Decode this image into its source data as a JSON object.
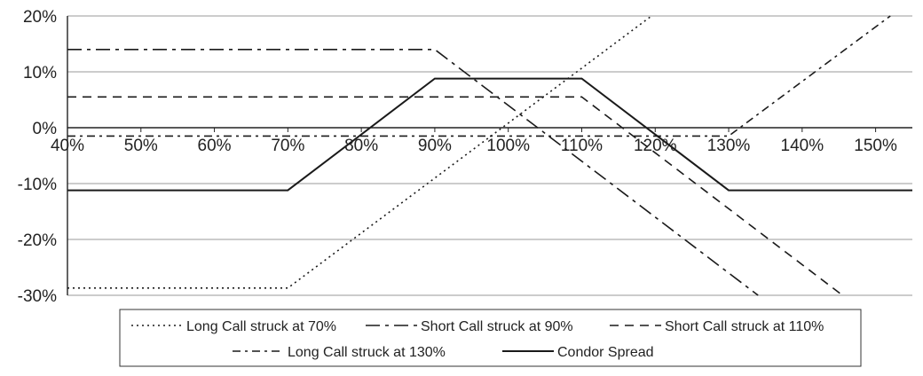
{
  "chart_data": {
    "type": "line",
    "title": "",
    "xlabel": "",
    "ylabel": "",
    "x_ticks": [
      "40%",
      "50%",
      "60%",
      "70%",
      "80%",
      "90%",
      "100%",
      "110%",
      "120%",
      "130%",
      "140%",
      "150%"
    ],
    "y_ticks": [
      "20%",
      "10%",
      "0%",
      "-10%",
      "-20%",
      "-30%"
    ],
    "xlim": [
      40,
      155
    ],
    "ylim": [
      -30,
      20
    ],
    "grid": "horizontal",
    "legend_position": "bottom",
    "series": [
      {
        "name": "Long Call struck at 70%",
        "style": "dotted",
        "points": [
          [
            40,
            -28.7
          ],
          [
            70,
            -28.7
          ],
          [
            119.5,
            20
          ]
        ]
      },
      {
        "name": "Short Call struck at 90%",
        "style": "long-dash-dot",
        "points": [
          [
            40,
            14
          ],
          [
            90,
            14
          ],
          [
            130,
            -26
          ],
          [
            134,
            -30
          ]
        ]
      },
      {
        "name": "Short Call struck at 110%",
        "style": "dashed",
        "points": [
          [
            40,
            5.5
          ],
          [
            110,
            5.5
          ],
          [
            145,
            -29.5
          ],
          [
            145.5,
            -30
          ]
        ]
      },
      {
        "name": "Long Call struck at 130%",
        "style": "dash-dot",
        "points": [
          [
            40,
            -1.5
          ],
          [
            130,
            -1.5
          ],
          [
            152,
            20
          ]
        ]
      },
      {
        "name": "Condor Spread",
        "style": "solid",
        "points": [
          [
            40,
            -11.2
          ],
          [
            70,
            -11.2
          ],
          [
            90,
            8.8
          ],
          [
            110,
            8.8
          ],
          [
            130,
            -11.2
          ],
          [
            155,
            -11.2
          ]
        ]
      }
    ]
  }
}
